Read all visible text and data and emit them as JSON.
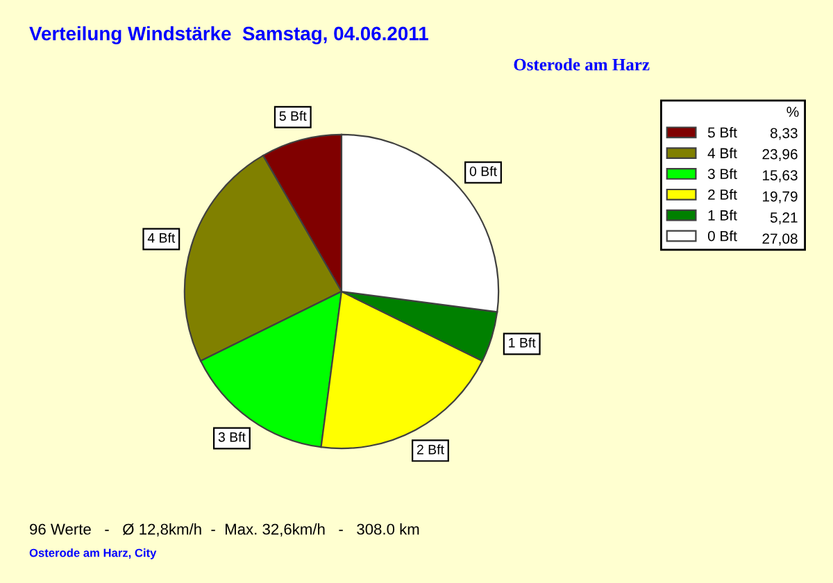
{
  "chart_data": {
    "type": "pie",
    "title": "Verteilung Windstärke  Samstag, 04.06.2011",
    "subtitle": "Osterode am Harz",
    "legend_title": "%",
    "categories": [
      "5 Bft",
      "4 Bft",
      "3 Bft",
      "2 Bft",
      "1 Bft",
      "0 Bft"
    ],
    "values": [
      8.33,
      23.96,
      15.63,
      19.79,
      5.21,
      27.08
    ],
    "value_labels": [
      "8,33",
      "23,96",
      "15,63",
      "19,79",
      "5,21",
      "27,08"
    ],
    "colors": [
      "#800000",
      "#808000",
      "#00ff00",
      "#ffff00",
      "#008000",
      "#ffffff"
    ],
    "legend": "top right",
    "annotations": [
      "96 Werte   -   Ø 12,8km/h  -  Max. 32,6km/h   -   308.0 km",
      "Osterode am Harz, City"
    ]
  }
}
